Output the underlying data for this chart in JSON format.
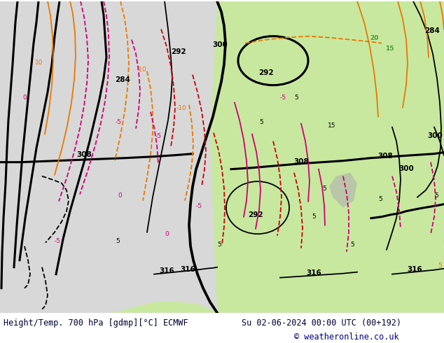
{
  "title_left": "Height/Temp. 700 hPa [gdmp][°C] ECMWF",
  "title_right": "Su 02-06-2024 00:00 UTC (00+192)",
  "copyright": "© weatheronline.co.uk",
  "bg_color": "#ffffff",
  "fig_width": 6.34,
  "fig_height": 4.9,
  "dpi": 100,
  "ocean_color": "#d8d8d8",
  "land_color": "#c8e8a0",
  "land_color2": "#b8d890",
  "grey_land_color": "#b0b0b0",
  "footer_color": "#000033",
  "footer_font_size": 8.5,
  "copyright_color": "#000080",
  "copyright_font_size": 8.5,
  "black": "#000000",
  "orange": "#e87800",
  "magenta": "#cc0077",
  "red": "#cc0000",
  "green_label": "#449933",
  "label_font_size": 6.5,
  "contour_lw": 1.3,
  "thick_lw": 2.2
}
